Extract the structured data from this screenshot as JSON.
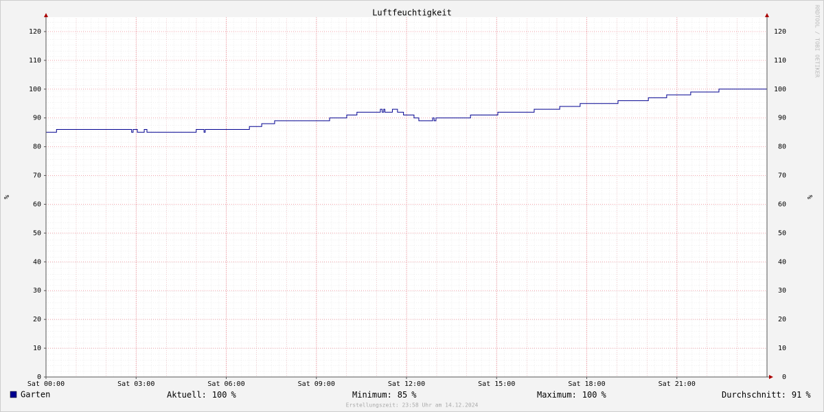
{
  "chart_data": {
    "type": "line",
    "title": "Luftfeuchtigkeit",
    "y_label": "%",
    "watermark": "RRDTOOL / TOBI OETIKER",
    "footer": "Erstellungszeit: 23:58 Uhr am 14.12.2024",
    "step": true,
    "grid": true,
    "xlim": [
      0,
      24
    ],
    "xticks": [
      {
        "value": 0,
        "label": "Sat 00:00"
      },
      {
        "value": 3,
        "label": "Sat 03:00"
      },
      {
        "value": 6,
        "label": "Sat 06:00"
      },
      {
        "value": 9,
        "label": "Sat 09:00"
      },
      {
        "value": 12,
        "label": "Sat 12:00"
      },
      {
        "value": 15,
        "label": "Sat 15:00"
      },
      {
        "value": 18,
        "label": "Sat 18:00"
      },
      {
        "value": 21,
        "label": "Sat 21:00"
      }
    ],
    "ylim": [
      0,
      125
    ],
    "yticks": [
      0,
      10,
      20,
      30,
      40,
      50,
      60,
      70,
      80,
      90,
      100,
      110,
      120
    ],
    "x": [
      0,
      0.35,
      2.85,
      2.9,
      3.04,
      3.27,
      3.36,
      5.0,
      5.26,
      5.3,
      6.77,
      7.18,
      7.61,
      9.44,
      10.01,
      10.35,
      11.13,
      11.19,
      11.24,
      11.28,
      11.53,
      11.7,
      11.9,
      12.25,
      12.41,
      12.87,
      12.92,
      12.98,
      14.13,
      15.04,
      16.25,
      17.1,
      17.78,
      19.04,
      20.05,
      20.66,
      21.46,
      22.4,
      24
    ],
    "series": [
      {
        "name": "Garten",
        "color": "#000090",
        "values": [
          85,
          86,
          85,
          86,
          85,
          86,
          85,
          86,
          85,
          86,
          87,
          88,
          89,
          90,
          91,
          92,
          93,
          92,
          93,
          92,
          93,
          92,
          91,
          90,
          89,
          90,
          89,
          90,
          91,
          92,
          93,
          94,
          95,
          96,
          97,
          98,
          99,
          100,
          100
        ]
      }
    ],
    "stats": [
      {
        "label": "Aktuell:",
        "value": 100,
        "unit": "%"
      },
      {
        "label": "Minimum:",
        "value": 85,
        "unit": "%"
      },
      {
        "label": "Maximum:",
        "value": 100,
        "unit": "%"
      },
      {
        "label": "Durchschnitt:",
        "value": 91,
        "unit": "%"
      }
    ]
  }
}
